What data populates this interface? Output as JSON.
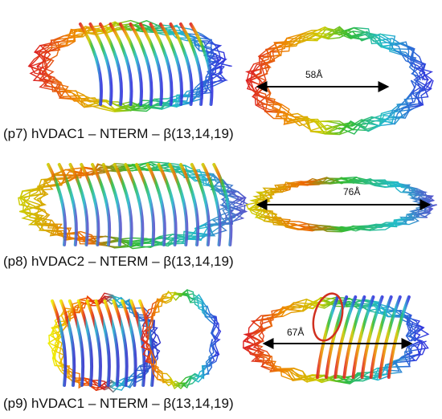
{
  "panels": [
    {
      "label": "(p7) hVDAC1 – NTERM – β(13,14,19)",
      "measurement": "58Å"
    },
    {
      "label": "(p8) hVDAC2 – NTERM – β(13,14,19)",
      "measurement": "76Å"
    },
    {
      "label": "(p9) hVDAC1 – NTERM – β(13,14,19)",
      "measurement": "67Å"
    }
  ]
}
